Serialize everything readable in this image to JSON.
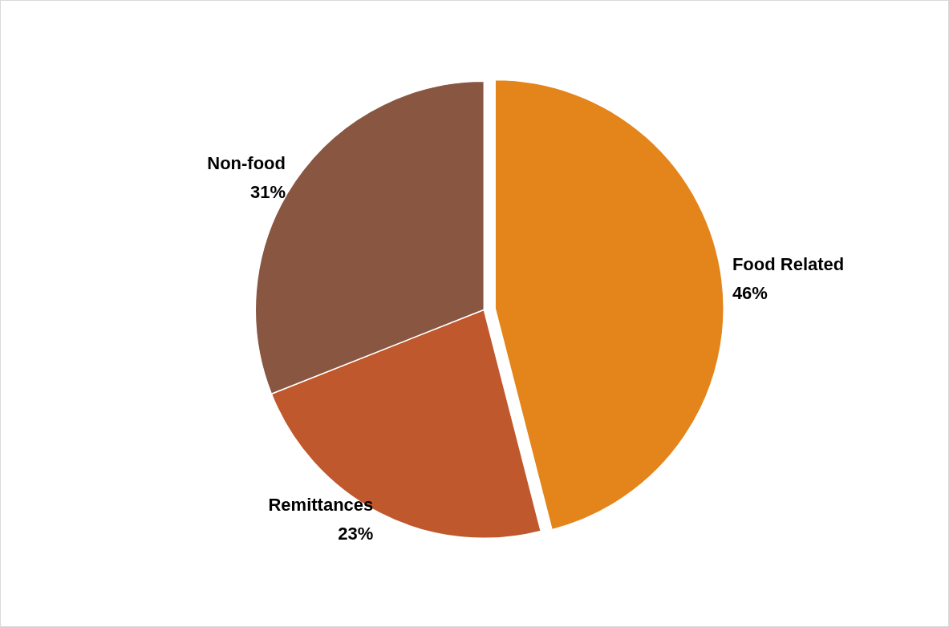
{
  "chart_data": {
    "type": "pie",
    "categories": [
      "Food Related",
      "Remittances",
      "Non-food"
    ],
    "values": [
      46,
      23,
      31
    ],
    "value_labels": [
      "46%",
      "23%",
      "31%"
    ],
    "colors": [
      "#e3851a",
      "#bf582c",
      "#895641"
    ],
    "legend": false
  }
}
